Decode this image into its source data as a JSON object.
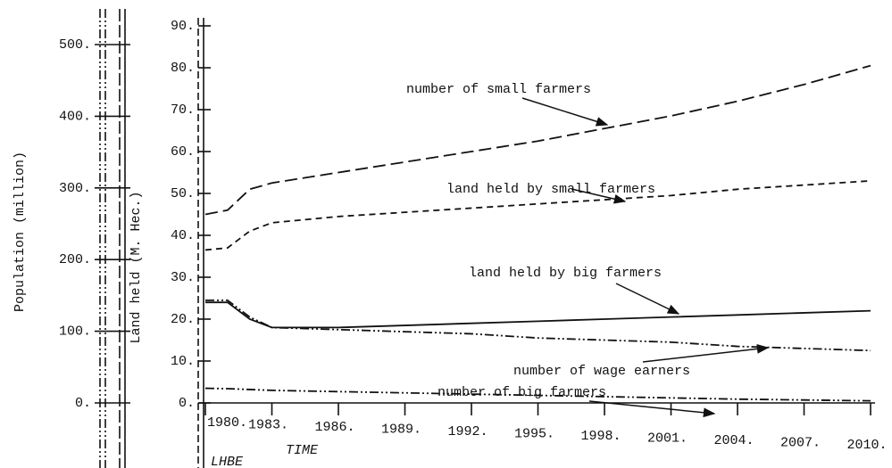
{
  "chart_data": {
    "type": "line",
    "x_label": "TIME",
    "y_label": "Land held (M. Hec.)",
    "y2_label": "Population (million)",
    "corner_label": "LHBE",
    "x": [
      1980,
      1981,
      1982,
      1983,
      1986,
      1989,
      1992,
      1995,
      1998,
      2001,
      2004,
      2007,
      2010
    ],
    "xlim": [
      1980,
      2010
    ],
    "xticks": [
      {
        "value": 1980,
        "label": "1980."
      },
      {
        "value": 1983,
        "label": "1983."
      },
      {
        "value": 1986,
        "label": "1986."
      },
      {
        "value": 1989,
        "label": "1989."
      },
      {
        "value": 1992,
        "label": "1992."
      },
      {
        "value": 1995,
        "label": "1995."
      },
      {
        "value": 1998,
        "label": "1998."
      },
      {
        "value": 2001,
        "label": "2001."
      },
      {
        "value": 2004,
        "label": "2004."
      },
      {
        "value": 2007,
        "label": "2007."
      },
      {
        "value": 2010,
        "label": "2010."
      }
    ],
    "ylim": [
      0,
      90
    ],
    "yticks": [
      {
        "value": 0,
        "label": "0."
      },
      {
        "value": 10,
        "label": "10."
      },
      {
        "value": 20,
        "label": "20."
      },
      {
        "value": 30,
        "label": "30."
      },
      {
        "value": 40,
        "label": "40."
      },
      {
        "value": 50,
        "label": "50."
      },
      {
        "value": 60,
        "label": "60."
      },
      {
        "value": 70,
        "label": "70."
      },
      {
        "value": 80,
        "label": "80."
      },
      {
        "value": 90,
        "label": "90."
      }
    ],
    "y2lim": [
      0,
      500
    ],
    "y2ticks": [
      {
        "value": 0,
        "label": "0."
      },
      {
        "value": 100,
        "label": "100."
      },
      {
        "value": 200,
        "label": "200."
      },
      {
        "value": 300,
        "label": "300."
      },
      {
        "value": 400,
        "label": "400."
      },
      {
        "value": 500,
        "label": "500."
      }
    ],
    "series": [
      {
        "name": "number of small farmers",
        "color": "#111111",
        "dash": "14,6",
        "values": [
          45,
          46,
          51,
          52.5,
          55,
          57.5,
          60,
          62.5,
          65.5,
          68.5,
          72,
          76,
          80.5
        ]
      },
      {
        "name": "land held by small farmers",
        "color": "#111111",
        "dash": "7,5",
        "values": [
          36.5,
          37,
          41,
          43,
          44.5,
          45.5,
          46.5,
          47.5,
          48.5,
          49.5,
          51,
          52,
          53
        ]
      },
      {
        "name": "land held by big farmers",
        "color": "#111111",
        "dash": "",
        "values": [
          24,
          24,
          20,
          18,
          18,
          18.5,
          19,
          19.5,
          20,
          20.5,
          21,
          21.5,
          22
        ]
      },
      {
        "name": "number of wage earners",
        "color": "#111111",
        "dash": "10,3,2,3,2,3",
        "values": [
          24.5,
          24.5,
          20.5,
          18,
          17.5,
          17,
          16.5,
          15.5,
          15,
          14.5,
          13.5,
          13,
          12.5
        ]
      },
      {
        "name": "number of big farmers",
        "color": "#111111",
        "dash": "10,3,2,3,2,3",
        "values": [
          3.5,
          3.4,
          3.2,
          3,
          2.7,
          2.4,
          2.1,
          1.8,
          1.5,
          1.2,
          0.9,
          0.7,
          0.5
        ]
      }
    ]
  }
}
